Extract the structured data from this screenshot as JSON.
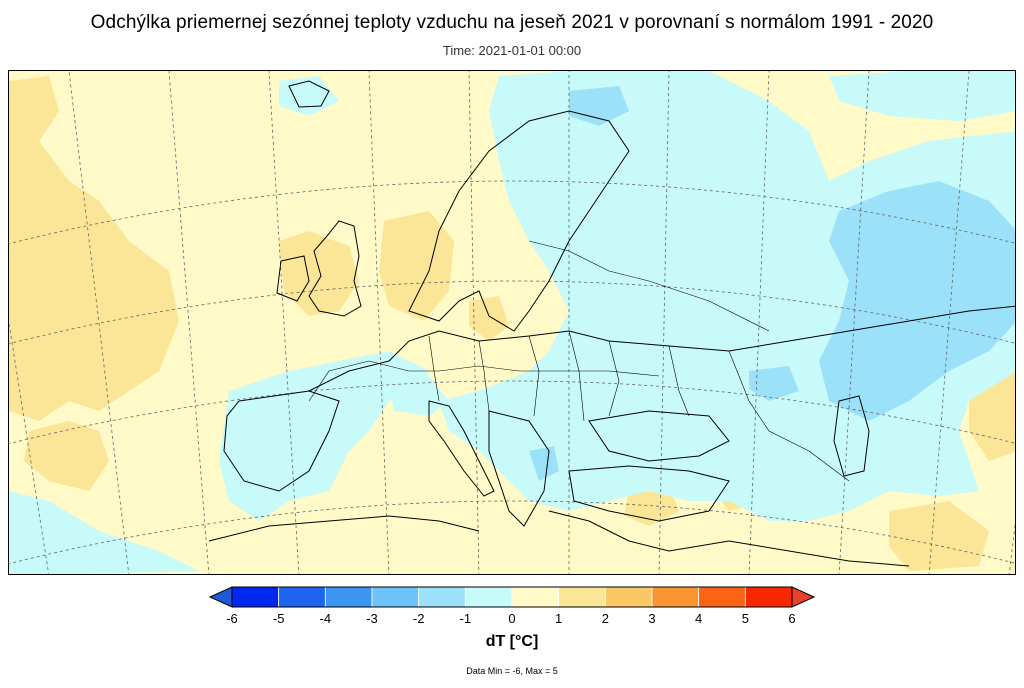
{
  "header": {
    "title": "Odchýlka priemernej sezónnej teploty vzduchu na jeseň 2021 v porovnaní s normálom 1991 - 2020",
    "subtitle": "Time: 2021-01-01 00:00"
  },
  "legend": {
    "label": "dT [°C]",
    "ticks": [
      "-6",
      "-5",
      "-4",
      "-3",
      "-2",
      "-1",
      "0",
      "1",
      "2",
      "3",
      "4",
      "5",
      "6"
    ],
    "under_color": "#1e5ad8",
    "over_color": "#e8402a",
    "bins": [
      {
        "min": -6,
        "max": -5,
        "color": "#0028f0"
      },
      {
        "min": -5,
        "max": -4,
        "color": "#1e64f0"
      },
      {
        "min": -4,
        "max": -3,
        "color": "#3c96f0"
      },
      {
        "min": -3,
        "max": -2,
        "color": "#6ec3fa"
      },
      {
        "min": -2,
        "max": -1,
        "color": "#9be1fa"
      },
      {
        "min": -1,
        "max": 0,
        "color": "#c8fafa"
      },
      {
        "min": 0,
        "max": 1,
        "color": "#fffac8"
      },
      {
        "min": 1,
        "max": 2,
        "color": "#fae696"
      },
      {
        "min": 2,
        "max": 3,
        "color": "#fac864"
      },
      {
        "min": 3,
        "max": 4,
        "color": "#fa9632"
      },
      {
        "min": 4,
        "max": 5,
        "color": "#fa6414"
      },
      {
        "min": 5,
        "max": 6,
        "color": "#fa2800"
      }
    ]
  },
  "footer": {
    "stats": "Data Min = -6, Max = 5"
  },
  "map": {
    "region": "Europe",
    "dominant_anomalies": {
      "north_atlantic": "1 to 2",
      "western_russia": "-2 to -1",
      "iberia_france": "-1 to 0",
      "central_europe": "0 to 1",
      "balkans_black_sea": "-1 to 0"
    }
  }
}
